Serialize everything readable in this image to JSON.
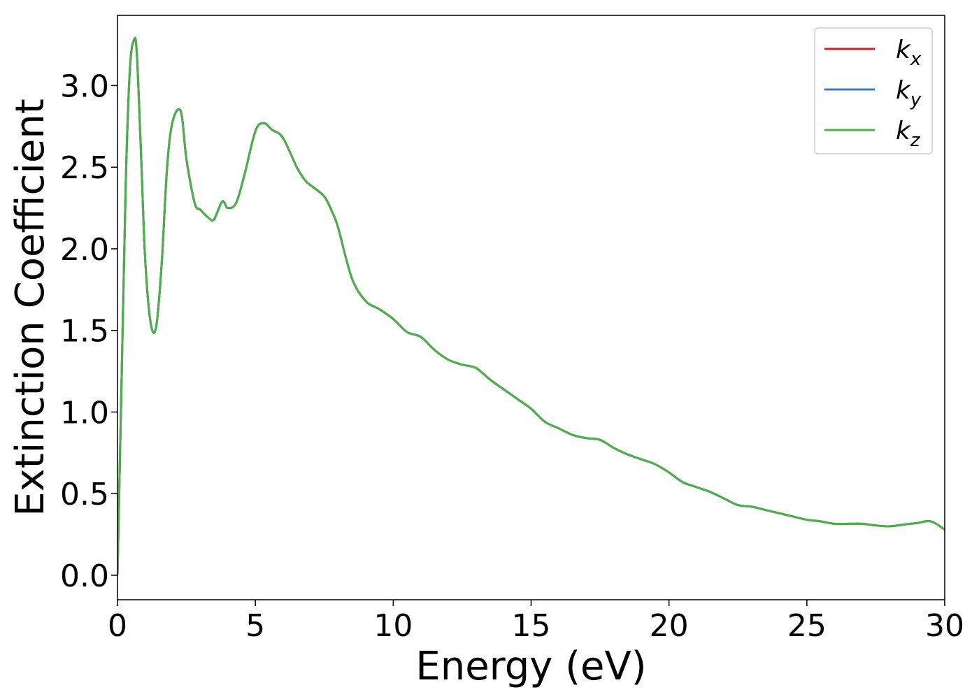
{
  "chart_data": {
    "type": "line",
    "xlabel": "Energy (eV)",
    "ylabel": "Extinction Coefficient",
    "xlim": [
      0,
      30
    ],
    "ylim": [
      -0.15,
      3.43
    ],
    "xticks": [
      0,
      5,
      10,
      15,
      20,
      25,
      30
    ],
    "xtick_labels": [
      "0",
      "5",
      "10",
      "15",
      "20",
      "25",
      "30"
    ],
    "yticks": [
      0.0,
      0.5,
      1.0,
      1.5,
      2.0,
      2.5,
      3.0
    ],
    "ytick_labels": [
      "0.0",
      "0.5",
      "1.0",
      "1.5",
      "2.0",
      "2.5",
      "3.0"
    ],
    "grid": false,
    "legend_position": "top-right",
    "x": [
      0,
      0.15,
      0.3,
      0.45,
      0.6,
      0.7,
      0.85,
      1.0,
      1.2,
      1.4,
      1.6,
      1.8,
      2.0,
      2.3,
      2.5,
      2.8,
      3.0,
      3.3,
      3.5,
      3.8,
      4.0,
      4.3,
      4.6,
      5.0,
      5.3,
      5.6,
      6.0,
      6.5,
      6.8,
      7.0,
      7.5,
      7.8,
      8.0,
      8.5,
      9.0,
      9.5,
      10.0,
      10.5,
      11.0,
      11.5,
      12.0,
      12.5,
      13.0,
      13.5,
      14.0,
      14.5,
      15.0,
      15.5,
      16.0,
      16.5,
      17.0,
      17.5,
      18.0,
      18.5,
      19.0,
      19.5,
      20.0,
      20.5,
      21.0,
      21.5,
      22.0,
      22.5,
      23.0,
      23.5,
      24.0,
      24.5,
      25.0,
      25.5,
      26.0,
      26.5,
      27.0,
      27.5,
      28.0,
      28.5,
      29.0,
      29.5,
      30.0
    ],
    "series": [
      {
        "name": "k_x",
        "label_main": "k",
        "label_sub": "x",
        "color": "#e41a1c",
        "values": [
          0.0,
          1.2,
          2.4,
          3.1,
          3.28,
          3.2,
          2.6,
          1.95,
          1.55,
          1.52,
          1.9,
          2.5,
          2.78,
          2.84,
          2.55,
          2.28,
          2.24,
          2.19,
          2.18,
          2.29,
          2.25,
          2.28,
          2.45,
          2.72,
          2.77,
          2.73,
          2.68,
          2.5,
          2.42,
          2.39,
          2.32,
          2.22,
          2.13,
          1.82,
          1.68,
          1.63,
          1.57,
          1.49,
          1.46,
          1.38,
          1.32,
          1.29,
          1.27,
          1.2,
          1.14,
          1.08,
          1.02,
          0.94,
          0.9,
          0.86,
          0.84,
          0.83,
          0.78,
          0.74,
          0.71,
          0.68,
          0.63,
          0.57,
          0.54,
          0.51,
          0.47,
          0.43,
          0.42,
          0.4,
          0.38,
          0.36,
          0.34,
          0.33,
          0.315,
          0.315,
          0.315,
          0.305,
          0.3,
          0.31,
          0.32,
          0.33,
          0.28
        ]
      },
      {
        "name": "k_y",
        "label_main": "k",
        "label_sub": "y",
        "color": "#377eb8",
        "values": [
          0.0,
          1.2,
          2.4,
          3.1,
          3.28,
          3.2,
          2.6,
          1.95,
          1.55,
          1.52,
          1.9,
          2.5,
          2.78,
          2.84,
          2.55,
          2.28,
          2.24,
          2.19,
          2.18,
          2.29,
          2.25,
          2.28,
          2.45,
          2.72,
          2.77,
          2.73,
          2.68,
          2.5,
          2.42,
          2.39,
          2.32,
          2.22,
          2.13,
          1.82,
          1.68,
          1.63,
          1.57,
          1.49,
          1.46,
          1.38,
          1.32,
          1.29,
          1.27,
          1.2,
          1.14,
          1.08,
          1.02,
          0.94,
          0.9,
          0.86,
          0.84,
          0.83,
          0.78,
          0.74,
          0.71,
          0.68,
          0.63,
          0.57,
          0.54,
          0.51,
          0.47,
          0.43,
          0.42,
          0.4,
          0.38,
          0.36,
          0.34,
          0.33,
          0.315,
          0.315,
          0.315,
          0.305,
          0.3,
          0.31,
          0.32,
          0.33,
          0.28
        ]
      },
      {
        "name": "k_z",
        "label_main": "k",
        "label_sub": "z",
        "color": "#4daf4a",
        "values": [
          0.0,
          1.2,
          2.4,
          3.1,
          3.28,
          3.2,
          2.6,
          1.95,
          1.55,
          1.52,
          1.9,
          2.5,
          2.78,
          2.84,
          2.55,
          2.28,
          2.24,
          2.19,
          2.18,
          2.29,
          2.25,
          2.28,
          2.45,
          2.72,
          2.77,
          2.73,
          2.68,
          2.5,
          2.42,
          2.39,
          2.32,
          2.22,
          2.13,
          1.82,
          1.68,
          1.63,
          1.57,
          1.49,
          1.46,
          1.38,
          1.32,
          1.29,
          1.27,
          1.2,
          1.14,
          1.08,
          1.02,
          0.94,
          0.9,
          0.86,
          0.84,
          0.83,
          0.78,
          0.74,
          0.71,
          0.68,
          0.63,
          0.57,
          0.54,
          0.51,
          0.47,
          0.43,
          0.42,
          0.4,
          0.38,
          0.36,
          0.34,
          0.33,
          0.315,
          0.315,
          0.315,
          0.305,
          0.3,
          0.31,
          0.32,
          0.33,
          0.28
        ]
      }
    ]
  }
}
